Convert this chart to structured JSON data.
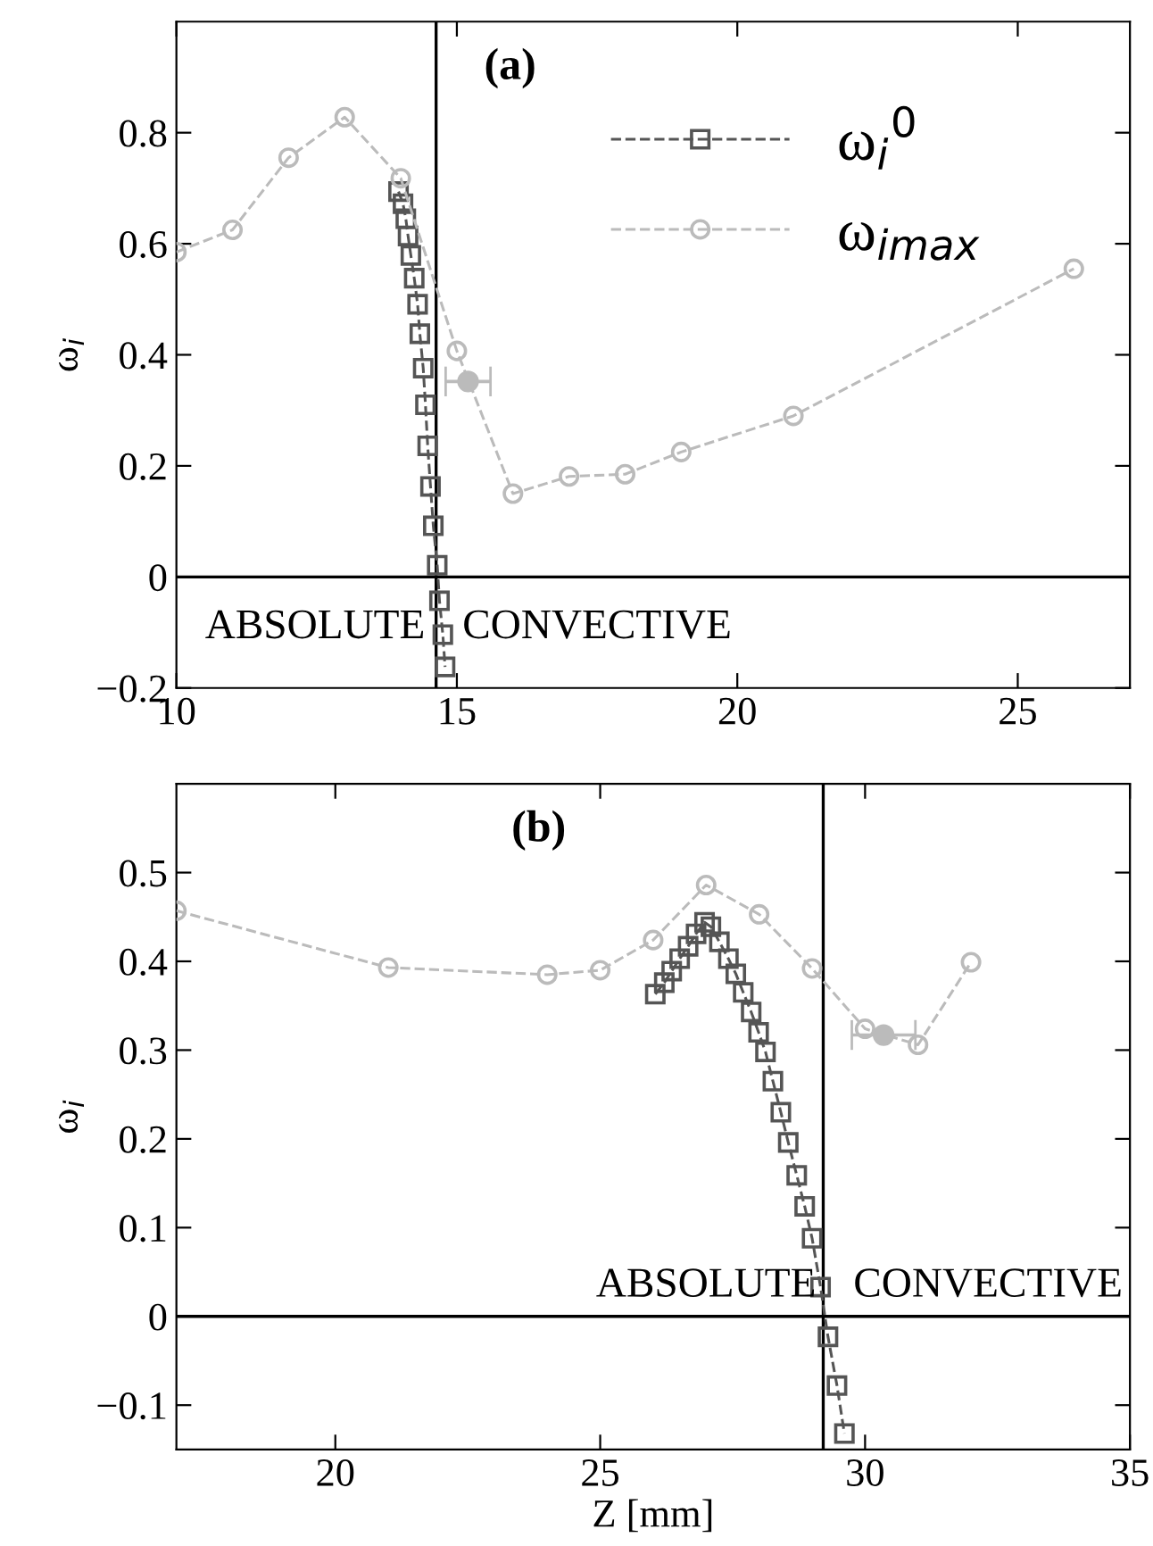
{
  "chart_data": [
    {
      "type": "line",
      "annotations": [
        "(a)",
        "ABSOLUTE",
        "CONVECTIVE"
      ],
      "ylabel": "ω$_{i}$",
      "xlim": [
        10,
        27
      ],
      "xticks": [
        10,
        15,
        20,
        25
      ],
      "ylim": [
        -0.2,
        1.0
      ],
      "yticks": [
        -0.2,
        0,
        0.2,
        0.4,
        0.6,
        0.8
      ],
      "ref_lines": [
        {
          "axis": "x",
          "value": 14.63,
          "color": "#000000"
        },
        {
          "axis": "y",
          "value": 0,
          "color": "#000000"
        }
      ],
      "legend": "top right",
      "grid": false,
      "line_style": "dashed",
      "series": [
        {
          "name": "ω$_{i}$$^{0}$",
          "color": "#555555",
          "marker": "square",
          "x": [
            13.96,
            14.04,
            14.09,
            14.13,
            14.18,
            14.24,
            14.3,
            14.34,
            14.4,
            14.44,
            14.48,
            14.53,
            14.58,
            14.65,
            14.69,
            14.75,
            14.79
          ],
          "values": [
            0.694,
            0.672,
            0.645,
            0.614,
            0.579,
            0.538,
            0.491,
            0.438,
            0.376,
            0.31,
            0.236,
            0.163,
            0.092,
            0.021,
            -0.043,
            -0.104,
            -0.162
          ]
        },
        {
          "name": "ω$_{imax}$",
          "color": "#bbbbbb",
          "marker": "circle",
          "x": [
            10,
            11,
            12,
            13,
            14,
            15,
            16,
            17,
            18,
            19,
            21,
            26
          ],
          "values": [
            0.585,
            0.625,
            0.755,
            0.828,
            0.718,
            0.407,
            0.15,
            0.181,
            0.185,
            0.225,
            0.29,
            0.555
          ]
        },
        {
          "type": "scatter",
          "color": "#bbbbbb",
          "marker": "circle",
          "x": [
            15.2
          ],
          "values": [
            0.352
          ],
          "xerrors": [
            0.4
          ]
        }
      ]
    },
    {
      "type": "line",
      "annotations": [
        "(b)",
        "ABSOLUTE",
        "CONVECTIVE"
      ],
      "ylabel": "ω$_{i}$",
      "xlabel": "Z [mm]",
      "xlim": [
        17,
        35
      ],
      "xticks": [
        20,
        25,
        30,
        35
      ],
      "ylim": [
        -0.15,
        0.6
      ],
      "yticks": [
        -0.1,
        0,
        0.1,
        0.2,
        0.3,
        0.4,
        0.5
      ],
      "ref_lines": [
        {
          "axis": "x",
          "value": 29.21,
          "color": "#000000"
        },
        {
          "axis": "y",
          "value": 0,
          "color": "#000000"
        }
      ],
      "grid": false,
      "line_style": "dashed",
      "series": [
        {
          "color": "#555555",
          "marker": "square",
          "x": [
            26.04,
            26.21,
            26.35,
            26.5,
            26.66,
            26.81,
            26.97,
            27.09,
            27.25,
            27.42,
            27.56,
            27.7,
            27.85,
            27.99,
            28.12,
            28.26,
            28.41,
            28.55,
            28.71,
            28.86,
            29.0,
            29.16,
            29.3,
            29.47,
            29.61
          ],
          "values": [
            0.363,
            0.376,
            0.389,
            0.403,
            0.417,
            0.431,
            0.444,
            0.439,
            0.422,
            0.403,
            0.386,
            0.365,
            0.343,
            0.32,
            0.298,
            0.265,
            0.23,
            0.196,
            0.159,
            0.124,
            0.088,
            0.033,
            -0.023,
            -0.078,
            -0.132
          ]
        },
        {
          "color": "#bbbbbb",
          "marker": "circle",
          "x": [
            17,
            21,
            24,
            25,
            26,
            27,
            28,
            29,
            30,
            31,
            32
          ],
          "values": [
            0.457,
            0.393,
            0.385,
            0.39,
            0.424,
            0.486,
            0.453,
            0.392,
            0.324,
            0.306,
            0.399
          ]
        },
        {
          "type": "scatter",
          "color": "#bbbbbb",
          "marker": "circle",
          "x": [
            30.35
          ],
          "values": [
            0.317
          ],
          "xerrors": [
            0.6
          ]
        }
      ]
    }
  ]
}
